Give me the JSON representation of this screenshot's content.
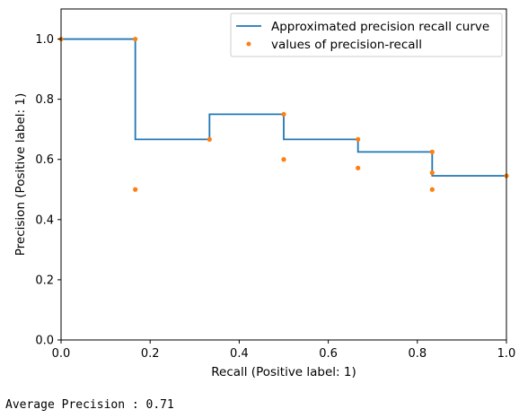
{
  "chart_data": {
    "type": "line",
    "xlabel": "Recall (Positive label: 1)",
    "ylabel": "Precision (Positive label: 1)",
    "xlim": [
      0.0,
      1.0
    ],
    "ylim": [
      0.0,
      1.1
    ],
    "xticks": [
      0.0,
      0.2,
      0.4,
      0.6,
      0.8,
      1.0
    ],
    "yticks": [
      0.0,
      0.2,
      0.4,
      0.6,
      0.8,
      1.0
    ],
    "xtick_labels": [
      "0.0",
      "0.2",
      "0.4",
      "0.6",
      "0.8",
      "1.0"
    ],
    "ytick_labels": [
      "0.0",
      "0.2",
      "0.4",
      "0.6",
      "0.8",
      "1.0"
    ],
    "grid": false,
    "legend_position": "top-right",
    "series": [
      {
        "name": "Approximated precision recall curve",
        "style": "step",
        "color": "#1f77b4",
        "x": [
          0.0,
          0.1667,
          0.1667,
          0.3333,
          0.3333,
          0.5,
          0.5,
          0.6667,
          0.6667,
          0.8333,
          0.8333,
          1.0
        ],
        "y": [
          1.0,
          1.0,
          0.6667,
          0.6667,
          0.75,
          0.75,
          0.6667,
          0.6667,
          0.625,
          0.625,
          0.5455,
          0.5455
        ]
      },
      {
        "name": "values of precision-recall",
        "style": "markers",
        "color": "#ff7f0e",
        "x": [
          0.0,
          0.1667,
          0.1667,
          0.3333,
          0.5,
          0.5,
          0.6667,
          0.6667,
          0.8333,
          0.8333,
          0.8333,
          1.0
        ],
        "y": [
          1.0,
          1.0,
          0.5,
          0.6667,
          0.75,
          0.6,
          0.6667,
          0.5714,
          0.625,
          0.5556,
          0.5,
          0.5455
        ]
      }
    ]
  },
  "output": {
    "average_precision_text": "Average Precision : 0.71"
  }
}
